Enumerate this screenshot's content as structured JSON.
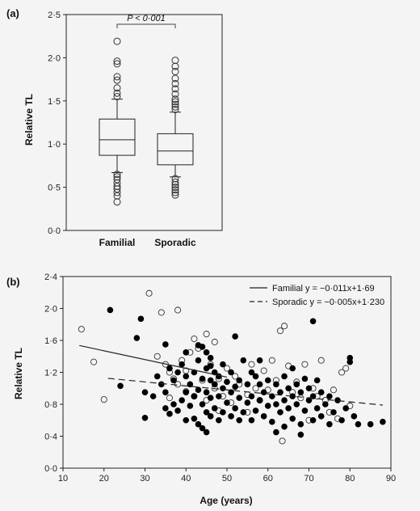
{
  "chart_data": [
    {
      "panel_label": "(a)",
      "type": "box",
      "ylabel": "Relative TL",
      "ylim": [
        0,
        2.5
      ],
      "yticks": [
        {
          "v": 0,
          "label": "0·0"
        },
        {
          "v": 0.5,
          "label": "0·5"
        },
        {
          "v": 1.0,
          "label": "1·0"
        },
        {
          "v": 1.5,
          "label": "1·5"
        },
        {
          "v": 2.0,
          "label": "2·0"
        },
        {
          "v": 2.5,
          "label": "2·5"
        }
      ],
      "categories": [
        "Familial",
        "Sporadic"
      ],
      "boxes": [
        {
          "name": "Familial",
          "q1": 0.87,
          "median": 1.05,
          "q3": 1.29,
          "whisker_low": 0.67,
          "whisker_high": 1.52,
          "outliers": [
            0.33,
            0.4,
            0.44,
            0.48,
            0.51,
            0.55,
            0.59,
            0.62,
            0.65,
            1.55,
            1.59,
            1.65,
            1.74,
            1.78,
            1.93,
            1.96,
            2.19
          ]
        },
        {
          "name": "Sporadic",
          "q1": 0.76,
          "median": 0.92,
          "q3": 1.12,
          "whisker_low": 0.62,
          "whisker_high": 1.37,
          "outliers": [
            0.41,
            0.44,
            0.47,
            0.5,
            0.53,
            0.56,
            0.6,
            1.4,
            1.43,
            1.46,
            1.49,
            1.52,
            1.58,
            1.64,
            1.7,
            1.76,
            1.84,
            1.9,
            1.97
          ]
        }
      ],
      "annotation": {
        "text": "P < 0·001",
        "between": [
          "Familial",
          "Sporadic"
        ]
      }
    },
    {
      "panel_label": "(b)",
      "type": "scatter",
      "xlabel": "Age (years)",
      "ylabel": "Relative TL",
      "xlim": [
        10,
        90
      ],
      "ylim": [
        0,
        2.4
      ],
      "xticks": [
        10,
        20,
        30,
        40,
        50,
        60,
        70,
        80,
        90
      ],
      "yticks": [
        {
          "v": 0,
          "label": "0·0"
        },
        {
          "v": 0.4,
          "label": "0·4"
        },
        {
          "v": 0.8,
          "label": "0·8"
        },
        {
          "v": 1.2,
          "label": "1·2"
        },
        {
          "v": 1.6,
          "label": "1·6"
        },
        {
          "v": 2.0,
          "label": "2·0"
        },
        {
          "v": 2.4,
          "label": "2·4"
        }
      ],
      "legend": [
        {
          "label": "Familial y = −0·011x+1·69",
          "style": "solid"
        },
        {
          "label": "Sporadic y = −0·005x+1·230",
          "style": "dashed"
        }
      ],
      "fit_lines": [
        {
          "style": "solid",
          "slope": -0.011,
          "intercept": 1.69,
          "x_range": [
            14,
            50
          ]
        },
        {
          "style": "dashed",
          "slope": -0.005,
          "intercept": 1.23,
          "x_range": [
            21,
            88
          ]
        }
      ],
      "series": [
        {
          "marker": "open",
          "points": [
            [
              14.5,
              1.74
            ],
            [
              17.5,
              1.33
            ],
            [
              20,
              0.86
            ],
            [
              31,
              2.19
            ],
            [
              33,
              1.4
            ],
            [
              34,
              1.95
            ],
            [
              35,
              1.3
            ],
            [
              36,
              1.2
            ],
            [
              37,
              1.12
            ],
            [
              38,
              1.05
            ],
            [
              38,
              1.98
            ],
            [
              39,
              1.35
            ],
            [
              40,
              0.96
            ],
            [
              41,
              1.45
            ],
            [
              42,
              0.9
            ],
            [
              42,
              1.62
            ],
            [
              43,
              1.5
            ],
            [
              44,
              1.1
            ],
            [
              45,
              0.85
            ],
            [
              45,
              1.68
            ],
            [
              46,
              1.3
            ],
            [
              47,
              1.58
            ],
            [
              47,
              1.0
            ],
            [
              48,
              1.12
            ],
            [
              49,
              0.9
            ],
            [
              50,
              1.25
            ],
            [
              51,
              0.82
            ],
            [
              52,
              1.15
            ],
            [
              53,
              1.05
            ],
            [
              55,
              0.92
            ],
            [
              56,
              1.3
            ],
            [
              57,
              1.0
            ],
            [
              58,
              0.85
            ],
            [
              59,
              1.22
            ],
            [
              60,
              0.98
            ],
            [
              61,
              1.35
            ],
            [
              62,
              1.1
            ],
            [
              63,
              1.72
            ],
            [
              64,
              1.78
            ],
            [
              65,
              1.28
            ],
            [
              66,
              0.95
            ],
            [
              67,
              1.08
            ],
            [
              68,
              0.88
            ],
            [
              69,
              1.3
            ],
            [
              70,
              0.6
            ],
            [
              71,
              1.0
            ],
            [
              72,
              0.9
            ],
            [
              73,
              1.35
            ],
            [
              74,
              0.85
            ],
            [
              75,
              0.7
            ],
            [
              76,
              0.98
            ],
            [
              77,
              0.62
            ],
            [
              78,
              1.2
            ],
            [
              79,
              1.25
            ],
            [
              80,
              0.78
            ],
            [
              63.5,
              0.34
            ],
            [
              55,
              0.7
            ],
            [
              48,
              0.72
            ],
            [
              36,
              0.88
            ],
            [
              40,
              1.22
            ]
          ]
        },
        {
          "marker": "filled",
          "points": [
            [
              21.5,
              1.98
            ],
            [
              24,
              1.03
            ],
            [
              28,
              1.63
            ],
            [
              29,
              1.87
            ],
            [
              30,
              0.63
            ],
            [
              32,
              0.9
            ],
            [
              33,
              1.15
            ],
            [
              34,
              1.05
            ],
            [
              35,
              0.75
            ],
            [
              35,
              0.95
            ],
            [
              36,
              1.25
            ],
            [
              36,
              0.68
            ],
            [
              37,
              0.8
            ],
            [
              37,
              1.1
            ],
            [
              38,
              0.72
            ],
            [
              38,
              1.2
            ],
            [
              39,
              0.85
            ],
            [
              39,
              1.3
            ],
            [
              40,
              0.6
            ],
            [
              40,
              0.95
            ],
            [
              40,
              1.15
            ],
            [
              40,
              1.45
            ],
            [
              41,
              0.78
            ],
            [
              41,
              1.05
            ],
            [
              42,
              0.62
            ],
            [
              42,
              0.9
            ],
            [
              42,
              1.2
            ],
            [
              43,
              0.55
            ],
            [
              43,
              0.98
            ],
            [
              43,
              1.35
            ],
            [
              44,
              0.5
            ],
            [
              44,
              0.8
            ],
            [
              44,
              1.12
            ],
            [
              44,
              1.52
            ],
            [
              45,
              0.7
            ],
            [
              45,
              0.95
            ],
            [
              45,
              1.25
            ],
            [
              45,
              1.45
            ],
            [
              46,
              0.65
            ],
            [
              46,
              0.88
            ],
            [
              46,
              1.1
            ],
            [
              46,
              1.38
            ],
            [
              47,
              0.75
            ],
            [
              47,
              1.05
            ],
            [
              47,
              1.2
            ],
            [
              48,
              0.6
            ],
            [
              48,
              0.9
            ],
            [
              48,
              1.15
            ],
            [
              49,
              0.7
            ],
            [
              49,
              1.0
            ],
            [
              49,
              1.3
            ],
            [
              50,
              0.82
            ],
            [
              50,
              1.08
            ],
            [
              51,
              0.65
            ],
            [
              51,
              0.95
            ],
            [
              51,
              1.2
            ],
            [
              52,
              0.75
            ],
            [
              52,
              1.02
            ],
            [
              53,
              0.6
            ],
            [
              53,
              0.88
            ],
            [
              53,
              1.1
            ],
            [
              54,
              0.7
            ],
            [
              54,
              1.35
            ],
            [
              55,
              0.82
            ],
            [
              55,
              1.05
            ],
            [
              56,
              0.6
            ],
            [
              56,
              0.9
            ],
            [
              57,
              0.72
            ],
            [
              57,
              1.15
            ],
            [
              58,
              0.85
            ],
            [
              58,
              1.05
            ],
            [
              59,
              0.65
            ],
            [
              59,
              0.95
            ],
            [
              60,
              0.78
            ],
            [
              60,
              1.1
            ],
            [
              61,
              0.58
            ],
            [
              61,
              0.9
            ],
            [
              62,
              0.8
            ],
            [
              62,
              1.05
            ],
            [
              63,
              0.7
            ],
            [
              63,
              0.95
            ],
            [
              64,
              0.52
            ],
            [
              64,
              0.85
            ],
            [
              64,
              1.15
            ],
            [
              65,
              0.75
            ],
            [
              65,
              1.0
            ],
            [
              66,
              0.62
            ],
            [
              66,
              0.9
            ],
            [
              66,
              1.25
            ],
            [
              67,
              0.8
            ],
            [
              67,
              1.05
            ],
            [
              68,
              0.55
            ],
            [
              68,
              0.95
            ],
            [
              69,
              0.72
            ],
            [
              69,
              1.12
            ],
            [
              70,
              0.85
            ],
            [
              70,
              1.0
            ],
            [
              71,
              0.6
            ],
            [
              71,
              0.9
            ],
            [
              71,
              1.84
            ],
            [
              72,
              0.75
            ],
            [
              72,
              1.1
            ],
            [
              73,
              0.65
            ],
            [
              73,
              0.95
            ],
            [
              74,
              0.8
            ],
            [
              75,
              0.55
            ],
            [
              75,
              0.9
            ],
            [
              76,
              0.7
            ],
            [
              77,
              0.85
            ],
            [
              78,
              0.6
            ],
            [
              79,
              0.75
            ],
            [
              80,
              1.38
            ],
            [
              80,
              1.33
            ],
            [
              81,
              0.65
            ],
            [
              82,
              0.55
            ],
            [
              85,
              0.55
            ],
            [
              88,
              0.58
            ],
            [
              35,
              1.55
            ],
            [
              52,
              1.65
            ],
            [
              30,
              0.95
            ],
            [
              43,
              1.54
            ],
            [
              46,
              1.28
            ],
            [
              56,
              1.2
            ],
            [
              58,
              1.35
            ],
            [
              62,
              0.45
            ],
            [
              68,
              0.42
            ],
            [
              45,
              0.45
            ]
          ]
        }
      ]
    }
  ]
}
